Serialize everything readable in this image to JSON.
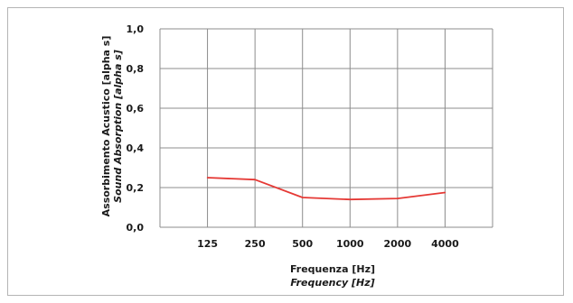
{
  "chart_data": {
    "type": "line",
    "categories": [
      "125",
      "250",
      "500",
      "1000",
      "2000",
      "4000"
    ],
    "series": [
      {
        "values": [
          0.25,
          0.24,
          0.15,
          0.14,
          0.145,
          0.175
        ]
      }
    ],
    "xlabel": "Frequenza [Hz]",
    "xlabel_secondary": "Frequency [Hz]",
    "ylabel": "Assorbimento Acustico [alpha s]",
    "ylabel_secondary": "Sound Absorption [alpha s]",
    "ylim": [
      0,
      1.0
    ],
    "yticks": [
      "0,0",
      "0,2",
      "0,4",
      "0,6",
      "0,8",
      "1,0"
    ],
    "grid": true,
    "line_color": "#e53935",
    "grid_color": "#8c8c8c"
  }
}
